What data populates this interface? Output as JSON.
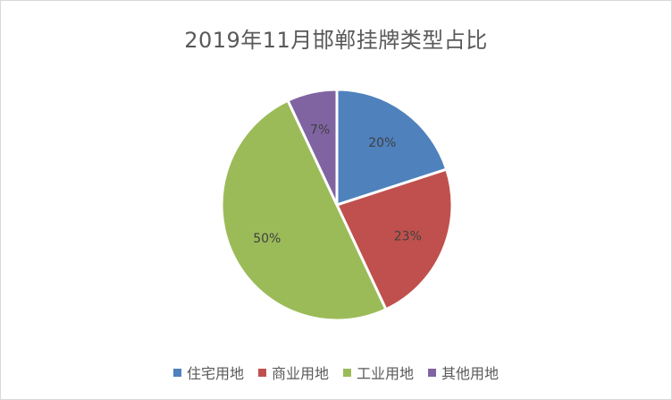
{
  "chart_data": {
    "type": "pie",
    "title": "2019年11月邯郸挂牌类型占比",
    "categories": [
      "住宅用地",
      "商业用地",
      "工业用地",
      "其他用地"
    ],
    "values": [
      20,
      23,
      50,
      7
    ],
    "labels": [
      "20%",
      "23%",
      "50%",
      "7%"
    ],
    "colors": [
      "#4f81bd",
      "#c0504d",
      "#9bbb59",
      "#8064a2"
    ],
    "legend": "bottom"
  }
}
